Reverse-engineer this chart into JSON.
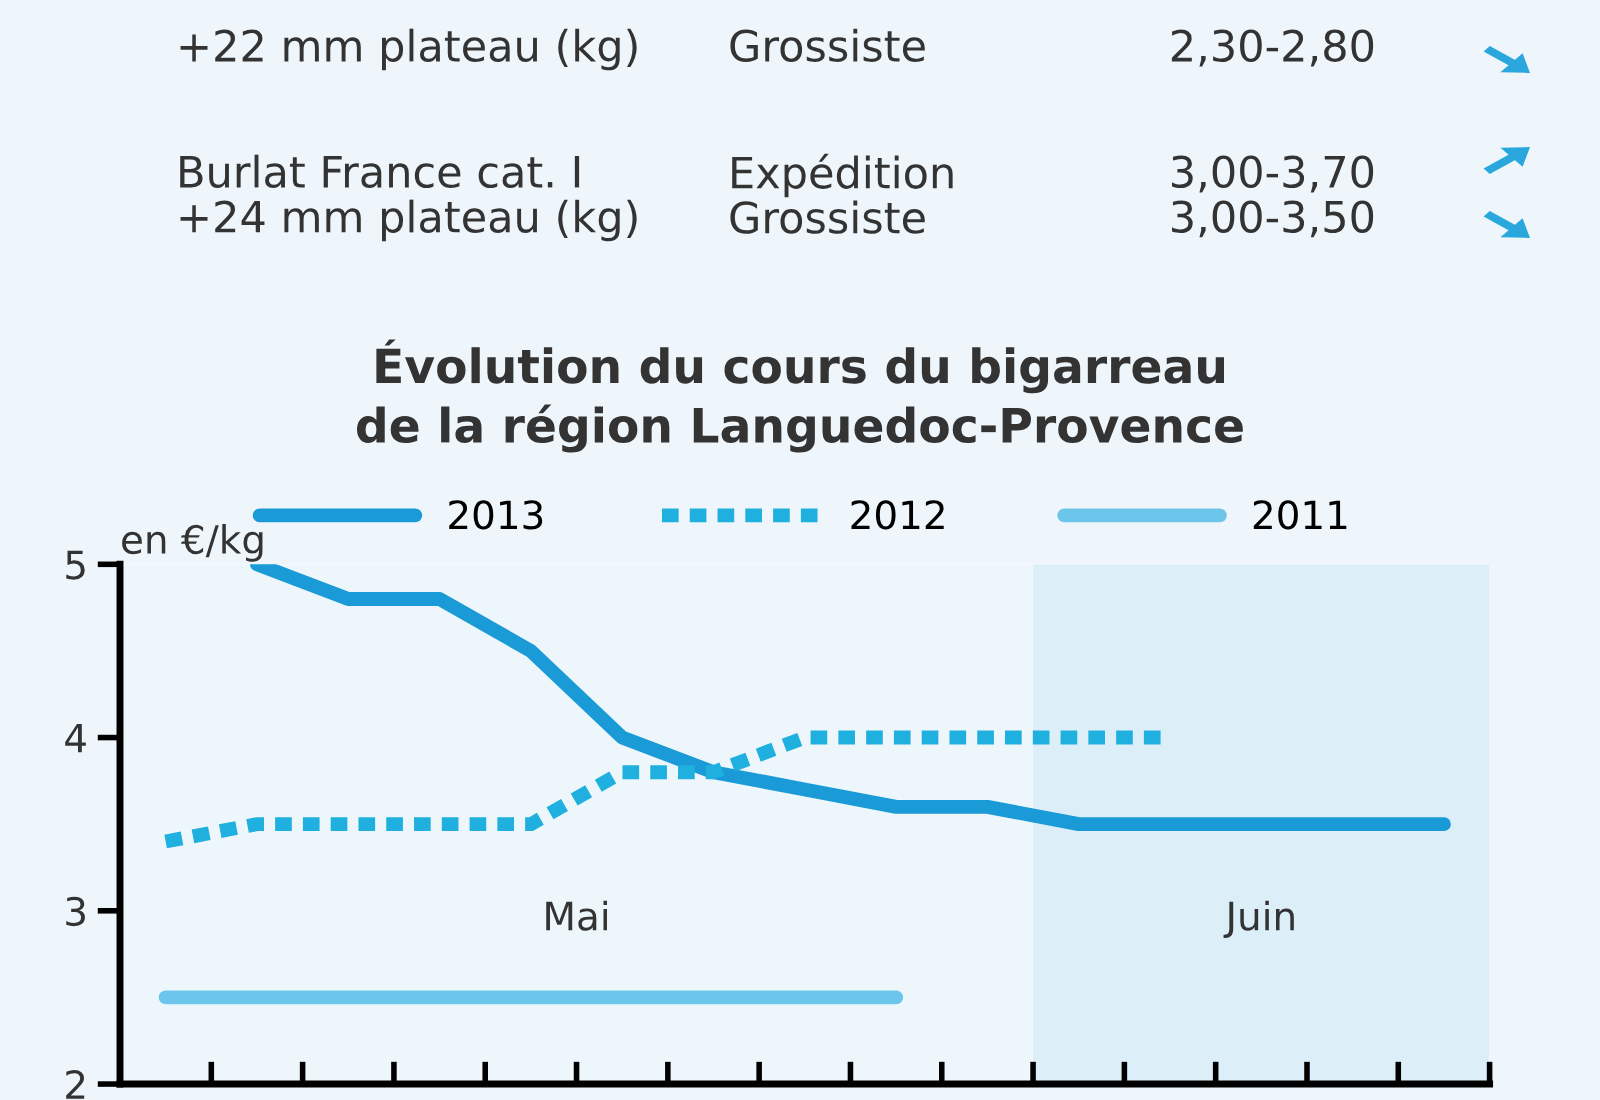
{
  "chart_data": {
    "type": "line",
    "title": "Évolution du cours du bigarreau\nde la région Languedoc-Provence",
    "ylabel": "en €/kg",
    "annotations": [
      "+22 mm plateau (kg)",
      "Grossiste",
      "2,30-2,80",
      "Burlat France cat. I\n+24 mm plateau (kg)",
      "Expédition\nGrossiste",
      "3,00-3,70\n3,00-3,50",
      "Mai",
      "Juin"
    ],
    "series": [
      {
        "name": "2013",
        "color": "#1a9ad6",
        "line_style": "solid",
        "values": [
          null,
          5.0,
          4.8,
          4.8,
          4.5,
          4.0,
          3.8,
          3.7,
          3.6,
          3.6,
          3.5,
          3.5,
          3.5,
          3.5,
          3.5
        ]
      },
      {
        "name": "2012",
        "color": "#1fb0e0",
        "line_style": "dashed",
        "values": [
          3.4,
          3.5,
          3.5,
          3.5,
          3.5,
          3.8,
          3.8,
          4.0,
          4.0,
          4.0,
          4.0,
          4.0,
          null,
          null,
          null
        ]
      },
      {
        "name": "2011",
        "color": "#6cc5ea",
        "line_style": "solid",
        "values": [
          2.5,
          2.5,
          2.5,
          2.5,
          2.5,
          2.5,
          2.5,
          2.5,
          2.5,
          null,
          null,
          null,
          null,
          null,
          null
        ]
      }
    ],
    "categories": [
      null,
      null,
      null,
      null,
      null,
      null,
      null,
      null,
      null,
      null,
      null,
      null,
      null,
      null,
      null
    ],
    "ylim": [
      2,
      5
    ],
    "yticks": [
      2,
      3,
      4,
      5
    ],
    "legend": "top",
    "grid": false,
    "marker": "none"
  }
}
